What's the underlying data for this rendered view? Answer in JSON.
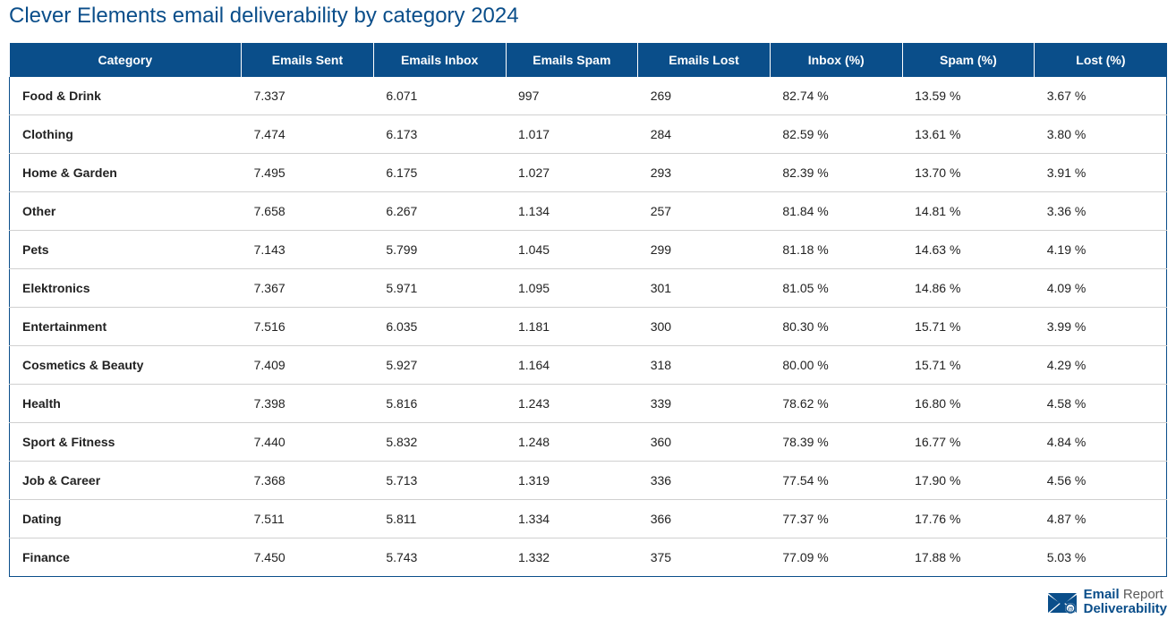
{
  "title": "Clever Elements email deliverability by category 2024",
  "colors": {
    "header_bg": "#0a4e8a",
    "header_fg": "#ffffff",
    "title_color": "#0a4e8a",
    "border_color": "#0a4e8a",
    "row_border": "#d0d0d0",
    "text_color": "#222222",
    "background": "#ffffff"
  },
  "table": {
    "columns": [
      "Category",
      "Emails Sent",
      "Emails Inbox",
      "Emails Spam",
      "Emails Lost",
      "Inbox (%)",
      "Spam (%)",
      "Lost (%)"
    ],
    "rows": [
      [
        "Food & Drink",
        "7.337",
        "6.071",
        "997",
        "269",
        "82.74 %",
        "13.59 %",
        "3.67 %"
      ],
      [
        "Clothing",
        "7.474",
        "6.173",
        "1.017",
        "284",
        "82.59 %",
        "13.61 %",
        "3.80 %"
      ],
      [
        "Home & Garden",
        "7.495",
        "6.175",
        "1.027",
        "293",
        "82.39 %",
        "13.70 %",
        "3.91 %"
      ],
      [
        "Other",
        "7.658",
        "6.267",
        "1.134",
        "257",
        "81.84 %",
        "14.81 %",
        "3.36 %"
      ],
      [
        "Pets",
        "7.143",
        "5.799",
        "1.045",
        "299",
        "81.18 %",
        "14.63 %",
        "4.19 %"
      ],
      [
        "Elektronics",
        "7.367",
        "5.971",
        "1.095",
        "301",
        "81.05 %",
        "14.86 %",
        "4.09 %"
      ],
      [
        "Entertainment",
        "7.516",
        "6.035",
        "1.181",
        "300",
        "80.30 %",
        "15.71 %",
        "3.99 %"
      ],
      [
        "Cosmetics & Beauty",
        "7.409",
        "5.927",
        "1.164",
        "318",
        "80.00 %",
        "15.71 %",
        "4.29 %"
      ],
      [
        "Health",
        "7.398",
        "5.816",
        "1.243",
        "339",
        "78.62 %",
        "16.80 %",
        "4.58 %"
      ],
      [
        "Sport & Fitness",
        "7.440",
        "5.832",
        "1.248",
        "360",
        "78.39 %",
        "16.77 %",
        "4.84 %"
      ],
      [
        "Job & Career",
        "7.368",
        "5.713",
        "1.319",
        "336",
        "77.54 %",
        "17.90 %",
        "4.56 %"
      ],
      [
        "Dating",
        "7.511",
        "5.811",
        "1.334",
        "366",
        "77.37 %",
        "17.76 %",
        "4.87 %"
      ],
      [
        "Finance",
        "7.450",
        "5.743",
        "1.332",
        "375",
        "77.09 %",
        "17.88 %",
        "5.03 %"
      ]
    ]
  },
  "logo": {
    "line1_bold": "Email",
    "line1_light": "Report",
    "line2": "Deliverability"
  }
}
